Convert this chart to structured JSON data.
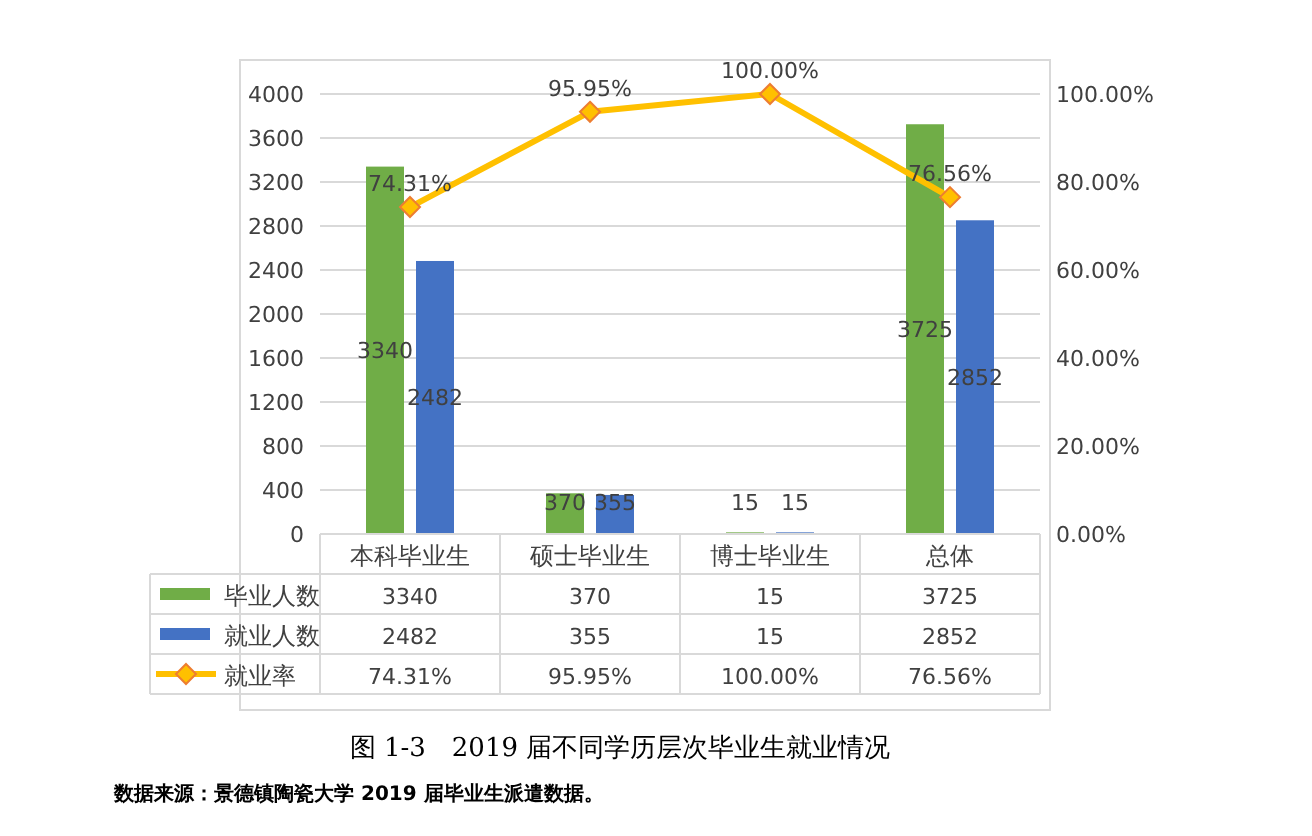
{
  "chart_data": {
    "type": "bar",
    "title": "图 1-3　2019 届不同学历层次毕业生就业情况",
    "annotations": [
      "数据来源：景德镇陶瓷大学 2019 届毕业生派遣数据。"
    ],
    "categories": [
      "本科毕业生",
      "硕士毕业生",
      "博士毕业生",
      "总体"
    ],
    "series": [
      {
        "name": "毕业人数",
        "color": "#70ad47",
        "values": [
          3340,
          370,
          15,
          3725
        ],
        "value_labels": [
          "3340",
          "370",
          "15",
          "3725"
        ]
      },
      {
        "name": "就业人数",
        "color": "#4472c4",
        "values": [
          2482,
          355,
          15,
          2852
        ],
        "value_labels": [
          "2482",
          "355",
          "15",
          "2852"
        ]
      },
      {
        "name": "就业率",
        "type": "line",
        "axis": "y2",
        "color": "#ffc000",
        "marker": "diamond",
        "values": [
          74.31,
          95.95,
          100.0,
          76.56
        ],
        "value_labels": [
          "74.31%",
          "95.95%",
          "100.00%",
          "76.56%"
        ]
      }
    ],
    "ylim": [
      0,
      4000
    ],
    "yticks": [
      0,
      400,
      800,
      1200,
      1600,
      2000,
      2400,
      2800,
      3200,
      3600,
      4000
    ],
    "y2lim": [
      0,
      100
    ],
    "y2ticks": [
      {
        "value": 0,
        "label": "0.00%"
      },
      {
        "value": 20,
        "label": "20.00%"
      },
      {
        "value": 40,
        "label": "40.00%"
      },
      {
        "value": 60,
        "label": "60.00%"
      },
      {
        "value": 80,
        "label": "80.00%"
      },
      {
        "value": 100,
        "label": "100.00%"
      }
    ],
    "grid": "y",
    "data_labels": true,
    "legend": "bottom"
  }
}
